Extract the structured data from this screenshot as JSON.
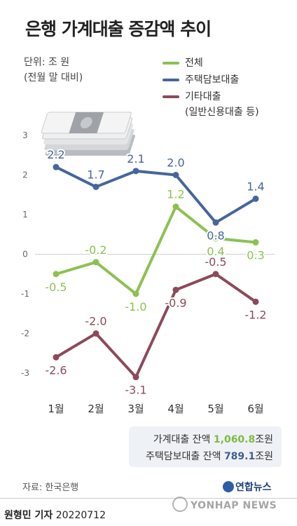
{
  "header": {
    "title": "은행 가계대출 증감액 추이"
  },
  "notes": {
    "unit": "단위: 조 원",
    "basis": "(전월 말 대비)"
  },
  "legend": {
    "items": [
      {
        "label": "전체",
        "color": "#8cc152"
      },
      {
        "label": "주택담보대출",
        "color": "#46669a"
      },
      {
        "label": "기타대출",
        "sub": "(일반신용대출 등)",
        "color": "#8b4a5a"
      }
    ]
  },
  "chart_data": {
    "type": "line",
    "categories": [
      "1월",
      "2월",
      "3월",
      "4월",
      "5월",
      "6월"
    ],
    "ylim": [
      -3,
      3
    ],
    "yticks": [
      "3",
      "2",
      "1",
      "0",
      "-1",
      "-2",
      "-3"
    ],
    "grid": false,
    "legend_position": "top-right",
    "series": [
      {
        "name": "전체",
        "color": "#8cc152",
        "values": [
          -0.5,
          -0.2,
          -1.0,
          1.2,
          0.4,
          0.3
        ],
        "labels": [
          "-0.5",
          "-0.2",
          "-1.0",
          "1.2",
          "0.4",
          "0.3"
        ]
      },
      {
        "name": "주택담보대출",
        "color": "#46669a",
        "values": [
          2.2,
          1.7,
          2.1,
          2.0,
          0.8,
          1.4
        ],
        "labels": [
          "2.2",
          "1.7",
          "2.1",
          "2.0",
          "0.8",
          "1.4"
        ]
      },
      {
        "name": "기타대출",
        "color": "#8b4a5a",
        "values": [
          -2.6,
          -2.0,
          -3.1,
          -0.9,
          -0.5,
          -1.2
        ],
        "labels": [
          "-2.6",
          "-2.0",
          "-3.1",
          "-0.9",
          "-0.5",
          "-1.2"
        ]
      }
    ]
  },
  "summary": {
    "household_label": "가계대출 잔액",
    "household_value": "1,060.8",
    "mortgage_label": "주택담보대출 잔액",
    "mortgage_value": "789.1",
    "unit": "조원"
  },
  "footer": {
    "source": "자료: 한국은행",
    "logo": "연합뉴스",
    "watermark": "YONHAP NEWS",
    "author": "원형민 기자",
    "date": "20220712"
  }
}
